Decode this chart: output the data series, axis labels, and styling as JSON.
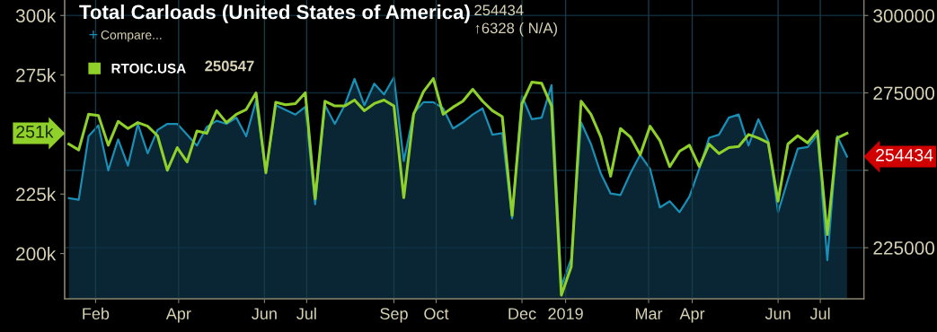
{
  "chart_data": {
    "type": "line",
    "title": "Total Carloads (United States of America)",
    "annotations": [
      "254434",
      "↑6328 ( N/A)",
      "Compare...",
      "250547",
      "254434",
      "251k",
      "+"
    ],
    "series": [
      {
        "type": "area",
        "axis": "y2",
        "color": "#1a8fb5",
        "values": [
          241000,
          240500,
          261000,
          264500,
          250000,
          260000,
          251500,
          265000,
          255500,
          263000,
          265000,
          265000,
          261500,
          258000,
          264000,
          266000,
          265000,
          267000,
          261000,
          272500,
          249000,
          271000,
          269500,
          268000,
          270500,
          239000,
          271000,
          265000,
          271000,
          279500,
          271000,
          278000,
          274500,
          280000,
          253000,
          268500,
          272000,
          272000,
          270000,
          263500,
          265500,
          268000,
          270000,
          261500,
          262000,
          234500,
          274000,
          266500,
          267000,
          277500,
          212500,
          221500,
          265500,
          258500,
          249000,
          242500,
          242000,
          249000,
          255000,
          250500,
          238000,
          240000,
          236500,
          241500,
          250500,
          260500,
          261500,
          267000,
          268000,
          258000,
          266500,
          259500,
          236500,
          247000,
          257000,
          257500,
          261500,
          221000,
          261000,
          254434
        ]
      },
      {
        "name": "RTOIC.USA",
        "color": "#8fd12a",
        "values": [
          246000,
          243500,
          258500,
          258000,
          245500,
          255500,
          252500,
          255000,
          253500,
          249500,
          235000,
          244500,
          238500,
          251500,
          250500,
          260000,
          255000,
          258500,
          260500,
          267500,
          234000,
          263500,
          262500,
          263000,
          267500,
          223000,
          264000,
          262000,
          262000,
          264500,
          260000,
          263000,
          264500,
          262000,
          223500,
          258500,
          268000,
          273500,
          258500,
          261500,
          264000,
          269000,
          264000,
          260000,
          257500,
          216000,
          263000,
          272000,
          271500,
          262000,
          182500,
          194500,
          264000,
          258500,
          249000,
          232500,
          252500,
          249000,
          241500,
          253500,
          247500,
          236500,
          243000,
          245500,
          236500,
          246000,
          242000,
          244500,
          245000,
          250000,
          248500,
          246500,
          222000,
          246000,
          249500,
          246500,
          251500,
          208000,
          248500,
          250547
        ]
      }
    ],
    "x": [
      "2018-01-13",
      "2018-01-20",
      "2018-01-27",
      "2018-02-03",
      "2018-02-10",
      "2018-02-17",
      "2018-02-24",
      "2018-03-03",
      "2018-03-10",
      "2018-03-17",
      "2018-03-24",
      "2018-03-31",
      "2018-04-07",
      "2018-04-14",
      "2018-04-21",
      "2018-04-28",
      "2018-05-05",
      "2018-05-12",
      "2018-05-19",
      "2018-05-26",
      "2018-06-02",
      "2018-06-09",
      "2018-06-16",
      "2018-06-23",
      "2018-06-30",
      "2018-07-07",
      "2018-07-14",
      "2018-07-21",
      "2018-07-28",
      "2018-08-04",
      "2018-08-11",
      "2018-08-18",
      "2018-08-25",
      "2018-09-01",
      "2018-09-08",
      "2018-09-15",
      "2018-09-22",
      "2018-09-29",
      "2018-10-06",
      "2018-10-13",
      "2018-10-20",
      "2018-10-27",
      "2018-11-03",
      "2018-11-10",
      "2018-11-17",
      "2018-11-24",
      "2018-12-01",
      "2018-12-08",
      "2018-12-15",
      "2018-12-22",
      "2018-12-29",
      "2019-01-05",
      "2019-01-12",
      "2019-01-19",
      "2019-01-26",
      "2019-02-02",
      "2019-02-09",
      "2019-02-16",
      "2019-02-23",
      "2019-03-02",
      "2019-03-09",
      "2019-03-16",
      "2019-03-23",
      "2019-03-30",
      "2019-04-06",
      "2019-04-13",
      "2019-04-20",
      "2019-04-27",
      "2019-05-04",
      "2019-05-11",
      "2019-05-18",
      "2019-05-25",
      "2019-06-01",
      "2019-06-08",
      "2019-06-15",
      "2019-06-22",
      "2019-06-29",
      "2019-07-06",
      "2019-07-13",
      "2019-07-20"
    ],
    "xlim": [
      "2018-01-10",
      "2019-08-01"
    ],
    "xticks": [
      {
        "value": "2018-02-01",
        "label": "Feb"
      },
      {
        "value": "2018-04-01",
        "label": "Apr"
      },
      {
        "value": "2018-06-01",
        "label": "Jun"
      },
      {
        "value": "2018-07-01",
        "label": "Jul"
      },
      {
        "value": "2018-09-01",
        "label": "Sep"
      },
      {
        "value": "2018-10-01",
        "label": "Oct"
      },
      {
        "value": "2018-12-01",
        "label": "Dec"
      },
      {
        "value": "2019-01-01",
        "label": "2019"
      },
      {
        "value": "2019-03-01",
        "label": "Mar"
      },
      {
        "value": "2019-04-01",
        "label": "Apr"
      },
      {
        "value": "2019-06-01",
        "label": "Jun"
      },
      {
        "value": "2019-07-01",
        "label": "Jul"
      }
    ],
    "ylim": [
      181000,
      306500
    ],
    "yticks": [
      {
        "value": 200000,
        "label": "200k"
      },
      {
        "value": 225000,
        "label": "225k"
      },
      {
        "value": 250000,
        "label": null
      },
      {
        "value": 275000,
        "label": "275k"
      },
      {
        "value": 300000,
        "label": "300k"
      }
    ],
    "y2lim": [
      208500,
      305000
    ],
    "y2ticks": [
      225000,
      {
        "value": 250000,
        "label": null
      },
      275000,
      300000
    ],
    "grid": true,
    "legend": "top left"
  }
}
